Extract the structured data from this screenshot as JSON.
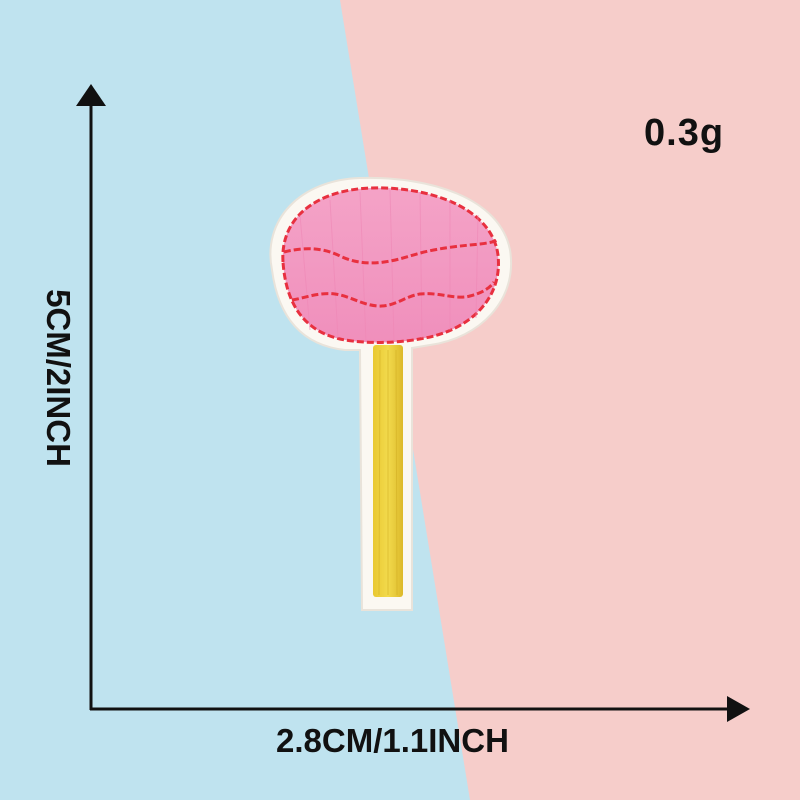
{
  "product": {
    "name": "Lollipop embroidered patch",
    "weight": "0.3g"
  },
  "dimensions": {
    "width_label": "2.8CM/1.1INCH",
    "height_label": "5CM/2INCH"
  },
  "colors": {
    "background_blue": "#bfe3ef",
    "background_pink": "#f6cdca",
    "candy_pink": "#f3a6c8",
    "stitch_red": "#e8303f",
    "stick_yellow": "#ecd13a",
    "felt_white": "#fbf8f2",
    "arrow_black": "#111111"
  }
}
